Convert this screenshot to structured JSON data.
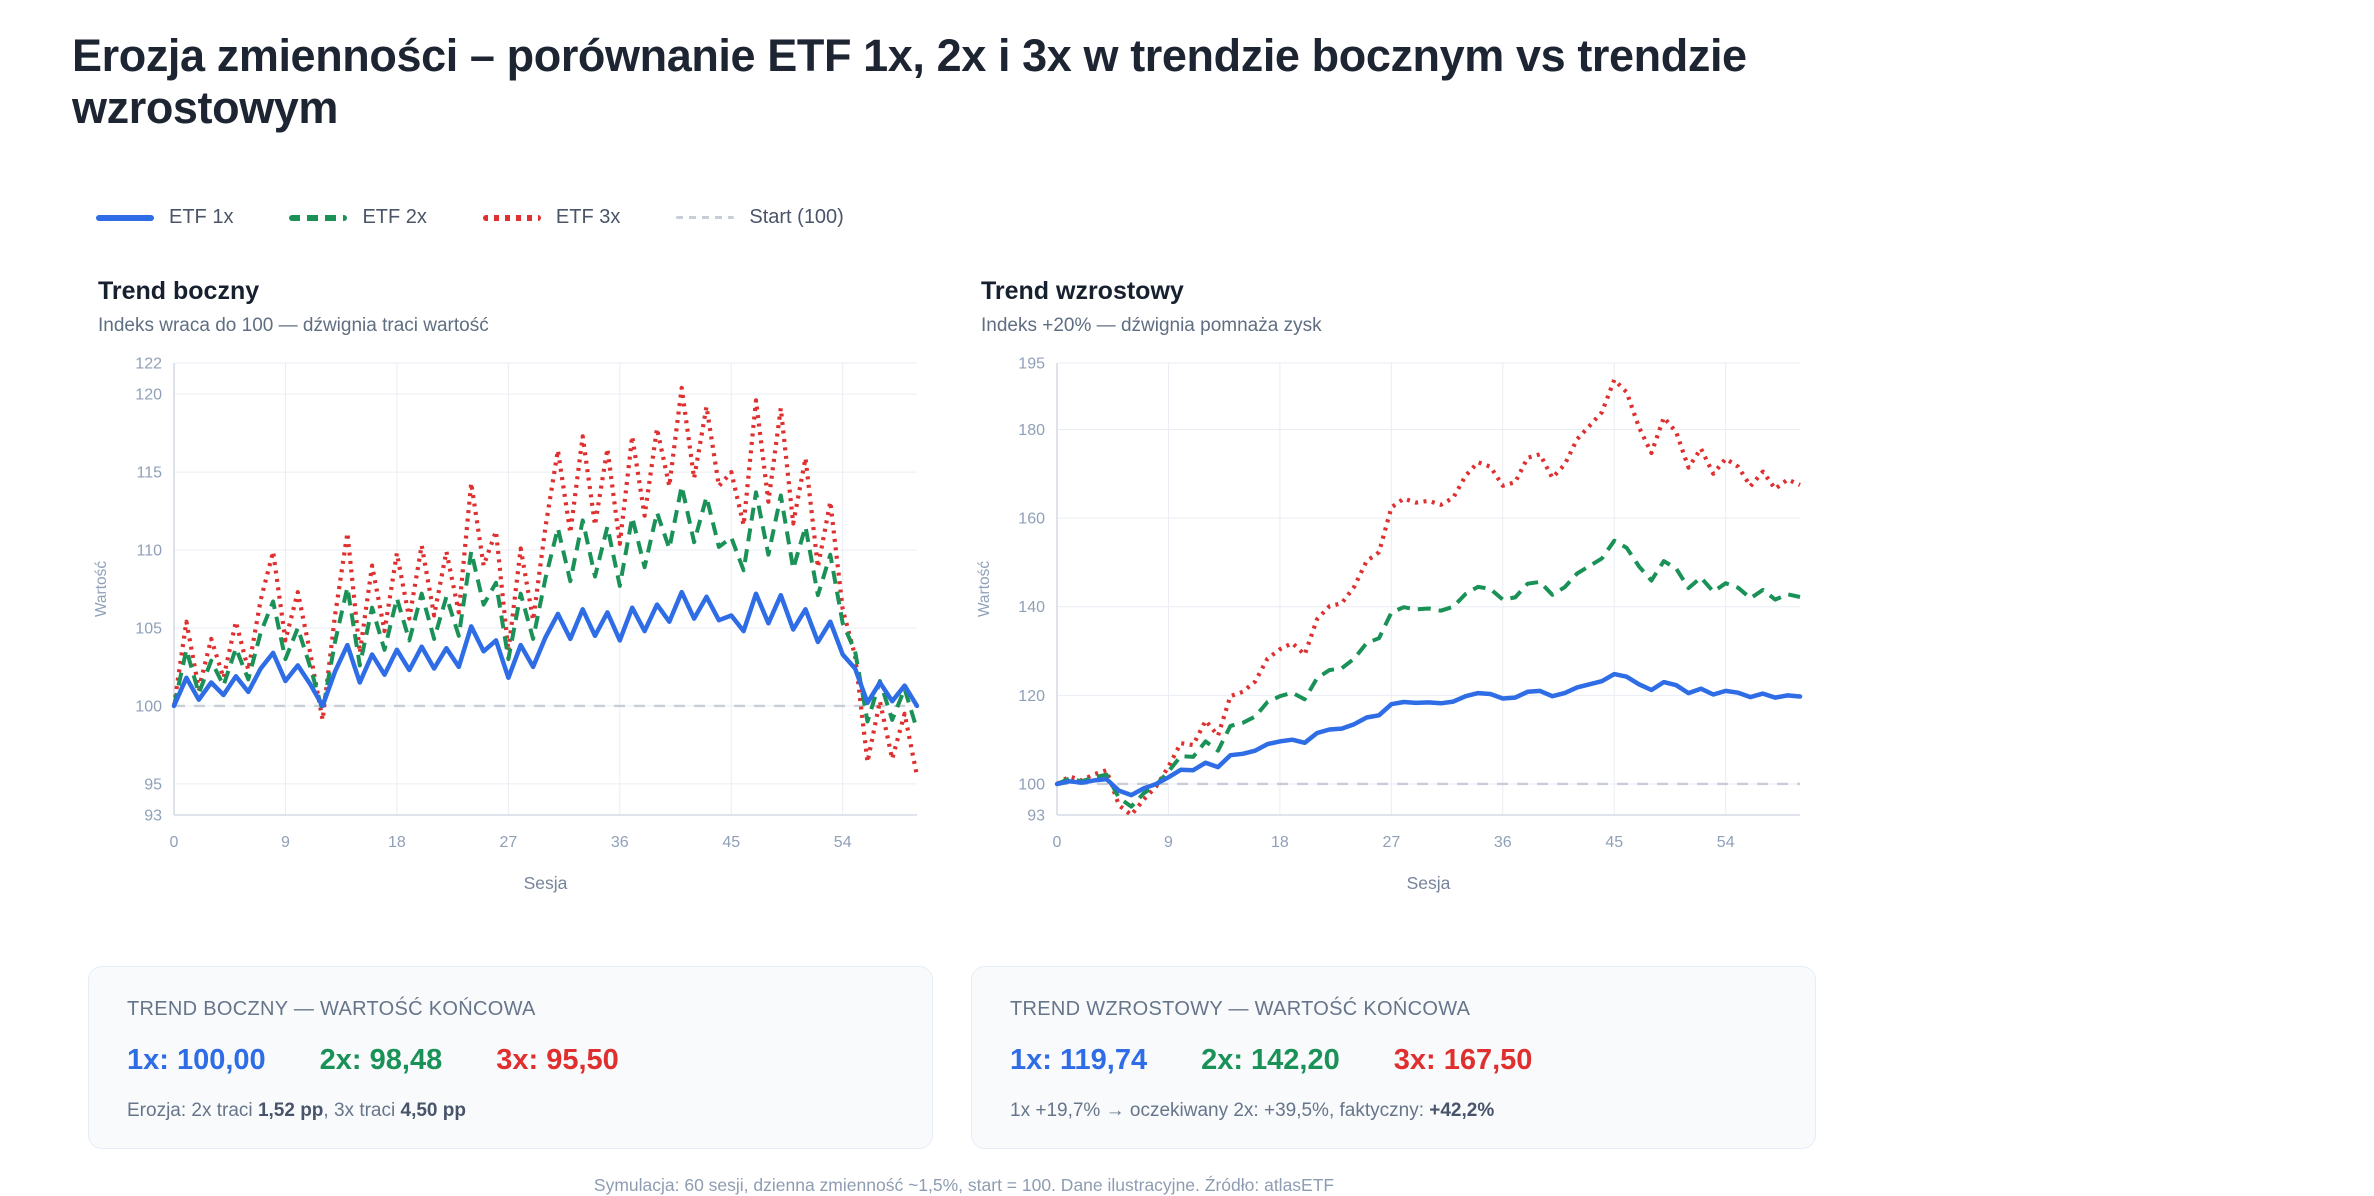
{
  "page": {
    "title": "Erozja zmienności – porównanie ETF 1x, 2x i 3x w trendzie bocznym vs trendzie wzrostowym",
    "footer": "Symulacja: 60 sesji, dzienna zmienność ~1,5%, start = 100. Dane ilustracyjne. Źródło: atlasETF"
  },
  "colors": {
    "etf1x": "#2e6de5",
    "etf2x": "#1a9257",
    "etf3x": "#df2f2f",
    "baseline": "#c8cdd7",
    "grid": "#e9edf3",
    "axis": "#d6dce5",
    "tick": "#8fa0b8",
    "axis_label": "#76849b"
  },
  "legend": {
    "items": [
      {
        "label": "ETF 1x",
        "swatch": "etf1x:solid"
      },
      {
        "label": "ETF 2x",
        "swatch": "etf2x:dashed"
      },
      {
        "label": "ETF 3x",
        "swatch": "etf3x:dotted"
      },
      {
        "label": "Start (100)",
        "swatch": "baseline:thin-dashed"
      }
    ]
  },
  "chart_data": [
    {
      "type": "line",
      "title": "Trend boczny",
      "subtitle": "Indeks wraca do 100 — dźwignia traci wartość",
      "xlabel": "Sesja",
      "ylabel": "Wartość",
      "xlim": [
        0,
        60
      ],
      "ylim": [
        93,
        122
      ],
      "xticks": [
        0,
        9,
        18,
        27,
        36,
        45,
        54
      ],
      "yticks": [
        93,
        95,
        100,
        105,
        110,
        115,
        120,
        122
      ],
      "baseline": 100,
      "x": [
        0,
        1,
        2,
        3,
        4,
        5,
        6,
        7,
        8,
        9,
        10,
        11,
        12,
        13,
        14,
        15,
        16,
        17,
        18,
        19,
        20,
        21,
        22,
        23,
        24,
        25,
        26,
        27,
        28,
        29,
        30,
        31,
        32,
        33,
        34,
        35,
        36,
        37,
        38,
        39,
        40,
        41,
        42,
        43,
        44,
        45,
        46,
        47,
        48,
        49,
        50,
        51,
        52,
        53,
        54,
        55,
        56,
        57,
        58,
        59,
        60
      ],
      "series": [
        {
          "name": "ETF 1x",
          "color_key": "etf1x",
          "dash": "solid",
          "values": [
            100.0,
            101.8,
            100.4,
            101.5,
            100.7,
            101.9,
            100.9,
            102.4,
            103.4,
            101.6,
            102.6,
            101.4,
            100.0,
            102.2,
            103.9,
            101.5,
            103.3,
            102.0,
            103.6,
            102.3,
            103.8,
            102.4,
            103.7,
            102.5,
            105.1,
            103.5,
            104.2,
            101.8,
            103.9,
            102.5,
            104.4,
            105.9,
            104.3,
            106.2,
            104.5,
            106.0,
            104.2,
            106.3,
            104.8,
            106.5,
            105.4,
            107.3,
            105.6,
            107.0,
            105.5,
            105.8,
            104.8,
            107.2,
            105.3,
            107.1,
            104.9,
            106.2,
            104.1,
            105.4,
            103.3,
            102.4,
            100.2,
            101.5,
            100.3,
            101.3,
            100.0
          ]
        },
        {
          "name": "ETF 2x",
          "color_key": "etf2x",
          "dash": "dashed",
          "values": [
            100.0,
            103.6,
            100.8,
            102.9,
            101.3,
            103.7,
            101.7,
            104.7,
            106.7,
            103.0,
            105.0,
            102.5,
            99.7,
            104.1,
            107.6,
            102.6,
            106.3,
            103.6,
            106.9,
            104.2,
            107.2,
            104.3,
            107.0,
            104.5,
            109.9,
            106.5,
            107.9,
            103.0,
            107.2,
            104.3,
            108.2,
            111.4,
            108.0,
            111.9,
            108.3,
            111.5,
            107.7,
            112.1,
            108.9,
            112.4,
            110.1,
            114.1,
            110.5,
            113.4,
            110.2,
            110.8,
            108.7,
            113.7,
            109.7,
            113.5,
            108.8,
            111.5,
            107.1,
            109.7,
            105.3,
            103.5,
            99.0,
            101.6,
            99.1,
            101.1,
            98.48
          ]
        },
        {
          "name": "ETF 3x",
          "color_key": "etf3x",
          "dash": "dotted",
          "values": [
            100.0,
            105.4,
            101.1,
            104.3,
            101.8,
            105.4,
            102.3,
            106.8,
            109.9,
            104.2,
            107.3,
            103.4,
            99.1,
            105.8,
            111.1,
            103.4,
            109.0,
            104.8,
            109.8,
            105.6,
            110.3,
            105.8,
            109.9,
            106.0,
            114.3,
            109.0,
            111.2,
            103.5,
            110.1,
            105.5,
            111.5,
            116.4,
            111.1,
            117.3,
            111.6,
            116.5,
            110.4,
            117.3,
            112.2,
            117.8,
            114.1,
            120.4,
            114.6,
            119.2,
            114.1,
            115.0,
            111.6,
            119.6,
            113.1,
            119.1,
            111.7,
            115.9,
            108.9,
            113.1,
            106.2,
            103.2,
            96.4,
            100.3,
            96.6,
            99.5,
            95.5
          ]
        }
      ]
    },
    {
      "type": "line",
      "title": "Trend wzrostowy",
      "subtitle": "Indeks +20% — dźwignia pomnaża zysk",
      "xlabel": "Sesja",
      "ylabel": "Wartość",
      "xlim": [
        0,
        60
      ],
      "ylim": [
        93,
        195
      ],
      "xticks": [
        0,
        9,
        18,
        27,
        36,
        45,
        54
      ],
      "yticks": [
        93,
        100,
        120,
        140,
        160,
        180,
        195
      ],
      "baseline": 100,
      "x": [
        0,
        1,
        2,
        3,
        4,
        5,
        6,
        7,
        8,
        9,
        10,
        11,
        12,
        13,
        14,
        15,
        16,
        17,
        18,
        19,
        20,
        21,
        22,
        23,
        24,
        25,
        26,
        27,
        28,
        29,
        30,
        31,
        32,
        33,
        34,
        35,
        36,
        37,
        38,
        39,
        40,
        41,
        42,
        43,
        44,
        45,
        46,
        47,
        48,
        49,
        50,
        51,
        52,
        53,
        54,
        55,
        56,
        57,
        58,
        59,
        60
      ],
      "series": [
        {
          "name": "ETF 1x",
          "color_key": "etf1x",
          "dash": "solid",
          "values": [
            100.0,
            100.6,
            100.3,
            100.8,
            101.1,
            98.5,
            97.5,
            99.0,
            100.0,
            101.5,
            103.2,
            103.1,
            104.8,
            103.8,
            106.5,
            106.8,
            107.5,
            109.0,
            109.6,
            110.0,
            109.3,
            111.5,
            112.3,
            112.5,
            113.5,
            115.0,
            115.5,
            118.0,
            118.5,
            118.3,
            118.4,
            118.2,
            118.6,
            119.8,
            120.5,
            120.3,
            119.3,
            119.5,
            120.8,
            121.0,
            119.8,
            120.5,
            121.8,
            122.5,
            123.2,
            124.8,
            124.2,
            122.5,
            121.2,
            123.0,
            122.3,
            120.5,
            121.5,
            120.2,
            121.0,
            120.6,
            119.6,
            120.4,
            119.5,
            120.0,
            119.74
          ]
        },
        {
          "name": "ETF 2x",
          "color_key": "etf2x",
          "dash": "dashed",
          "values": [
            100.0,
            101.2,
            100.6,
            101.5,
            102.1,
            96.9,
            94.9,
            97.9,
            99.8,
            102.8,
            106.3,
            106.1,
            109.6,
            107.5,
            113.1,
            113.8,
            115.2,
            118.5,
            119.8,
            120.6,
            119.1,
            123.9,
            125.7,
            126.1,
            128.3,
            131.8,
            132.9,
            138.7,
            139.9,
            139.4,
            139.6,
            139.1,
            140.0,
            142.9,
            144.5,
            144.0,
            141.6,
            142.1,
            145.2,
            145.6,
            142.7,
            144.4,
            147.5,
            149.2,
            150.9,
            154.9,
            153.3,
            149.1,
            145.9,
            150.3,
            148.6,
            144.2,
            146.6,
            143.4,
            145.3,
            144.3,
            141.9,
            143.8,
            141.6,
            142.8,
            142.2
          ]
        },
        {
          "name": "ETF 3x",
          "color_key": "etf3x",
          "dash": "dotted",
          "values": [
            100.0,
            101.7,
            100.8,
            102.2,
            103.1,
            95.2,
            93.0,
            96.5,
            99.4,
            103.9,
            109.2,
            108.8,
            114.3,
            110.9,
            119.8,
            120.8,
            123.1,
            128.3,
            130.4,
            131.8,
            129.2,
            137.2,
            140.1,
            140.8,
            144.5,
            150.3,
            152.3,
            162.4,
            164.4,
            163.5,
            163.9,
            163.0,
            164.6,
            169.6,
            172.6,
            171.6,
            167.3,
            168.1,
            173.6,
            174.4,
            169.1,
            172.1,
            177.8,
            180.8,
            183.9,
            191.2,
            188.4,
            180.5,
            174.7,
            182.7,
            179.4,
            171.4,
            175.7,
            170.0,
            173.4,
            171.6,
            167.2,
            170.5,
            166.6,
            168.7,
            167.5
          ]
        }
      ]
    }
  ],
  "cards": [
    {
      "heading": "TREND BOCZNY — WARTOŚĆ KOŃCOWA",
      "values": [
        {
          "text": "1x: 100,00",
          "series": "etf1x"
        },
        {
          "text": "2x: 98,48",
          "series": "etf2x"
        },
        {
          "text": "3x: 95,50",
          "series": "etf3x"
        }
      ],
      "note": [
        "Erozja: 2x traci ",
        "1,52 pp",
        ", 3x traci ",
        "4,50 pp"
      ]
    },
    {
      "heading": "TREND WZROSTOWY — WARTOŚĆ KOŃCOWA",
      "values": [
        {
          "text": "1x: 119,74",
          "series": "etf1x"
        },
        {
          "text": "2x: 142,20",
          "series": "etf2x"
        },
        {
          "text": "3x: 167,50",
          "series": "etf3x"
        }
      ],
      "note": [
        "1x +19,7% → oczekiwany 2x: +39,5%, faktyczny: ",
        "+42,2%",
        "",
        ""
      ]
    }
  ]
}
